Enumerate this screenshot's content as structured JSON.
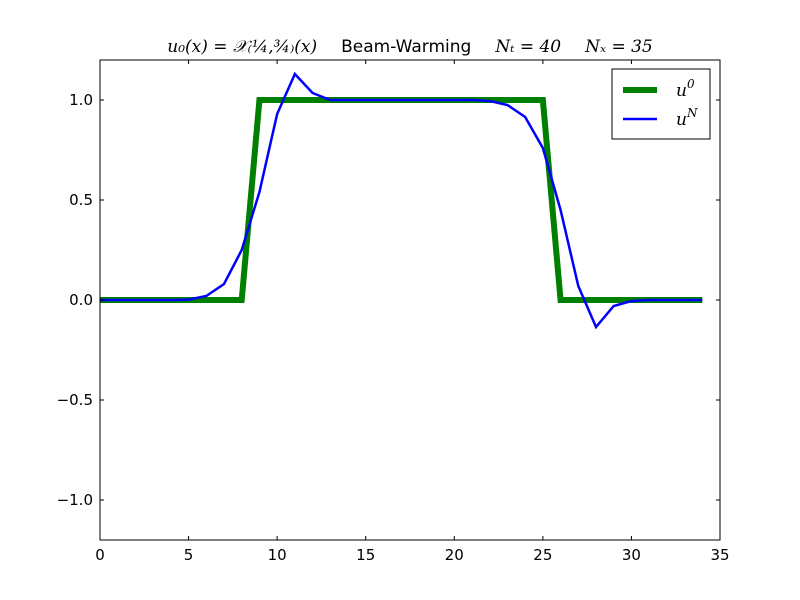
{
  "chart_data": {
    "type": "line",
    "title": {
      "left": "u₀(x) = 𝒳₍¼,¾₎(x)",
      "method": "Beam-Warming",
      "nt": "Nₜ = 40",
      "nx": "Nₓ = 35"
    },
    "xlabel": "",
    "ylabel": "",
    "xlim": [
      0,
      35
    ],
    "ylim": [
      -1.2,
      1.2
    ],
    "xticks": [
      0,
      5,
      10,
      15,
      20,
      25,
      30,
      35
    ],
    "yticks": [
      -1.0,
      -0.5,
      0.0,
      0.5,
      1.0
    ],
    "xtick_labels": [
      "0",
      "5",
      "10",
      "15",
      "20",
      "25",
      "30",
      "35"
    ],
    "ytick_labels": [
      "−1.0",
      "−0.5",
      "0.0",
      "0.5",
      "1.0"
    ],
    "grid": false,
    "legend_position": "top-right",
    "x": [
      0,
      1,
      2,
      3,
      4,
      5,
      6,
      7,
      8,
      9,
      10,
      11,
      12,
      13,
      14,
      15,
      16,
      17,
      18,
      19,
      20,
      21,
      22,
      23,
      24,
      25,
      26,
      27,
      28,
      29,
      30,
      31,
      32,
      33,
      34
    ],
    "series": [
      {
        "name": "u0",
        "legend_label": {
          "base": "u",
          "sup": "0"
        },
        "color": "#008000",
        "values": [
          0,
          0,
          0,
          0,
          0,
          0,
          0,
          0,
          0,
          1,
          1,
          1,
          1,
          1,
          1,
          1,
          1,
          1,
          1,
          1,
          1,
          1,
          1,
          1,
          1,
          1,
          0,
          0,
          0,
          0,
          0,
          0,
          0,
          0,
          0
        ]
      },
      {
        "name": "uN",
        "legend_label": {
          "base": "u",
          "sup": "N"
        },
        "color": "#0000ff",
        "values": [
          0,
          0,
          0,
          0,
          0,
          0.002,
          0.02,
          0.08,
          0.25,
          0.54,
          0.93,
          1.13,
          1.035,
          1.0,
          1.0,
          1.0,
          1.0,
          1.0,
          1.0,
          1.0,
          1.0,
          1.0,
          0.995,
          0.975,
          0.915,
          0.76,
          0.45,
          0.07,
          -0.135,
          -0.03,
          -0.005,
          0,
          0,
          0,
          0
        ]
      }
    ]
  }
}
